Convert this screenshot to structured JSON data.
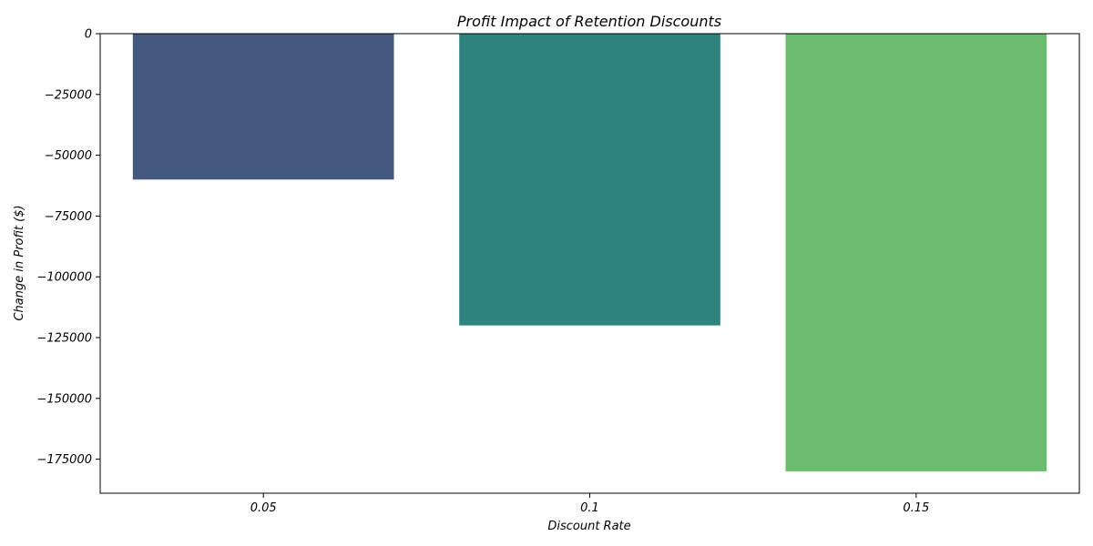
{
  "chart_data": {
    "type": "bar",
    "title": "Profit Impact of Retention Discounts",
    "xlabel": "Discount Rate",
    "ylabel": "Change in Profit ($)",
    "categories": [
      "0.05",
      "0.1",
      "0.15"
    ],
    "values": [
      -60000,
      -120000,
      -180000
    ],
    "colors": [
      "#455880",
      "#2e837e",
      "#6bbd6d"
    ],
    "ylim": [
      -189000,
      0
    ],
    "yticks": [
      0,
      -25000,
      -50000,
      -75000,
      -100000,
      -125000,
      -150000,
      -175000
    ],
    "ytick_labels": [
      "0",
      "−25000",
      "−50000",
      "−75000",
      "−100000",
      "−125000",
      "−150000",
      "−175000"
    ],
    "grid": false,
    "legend": false
  }
}
